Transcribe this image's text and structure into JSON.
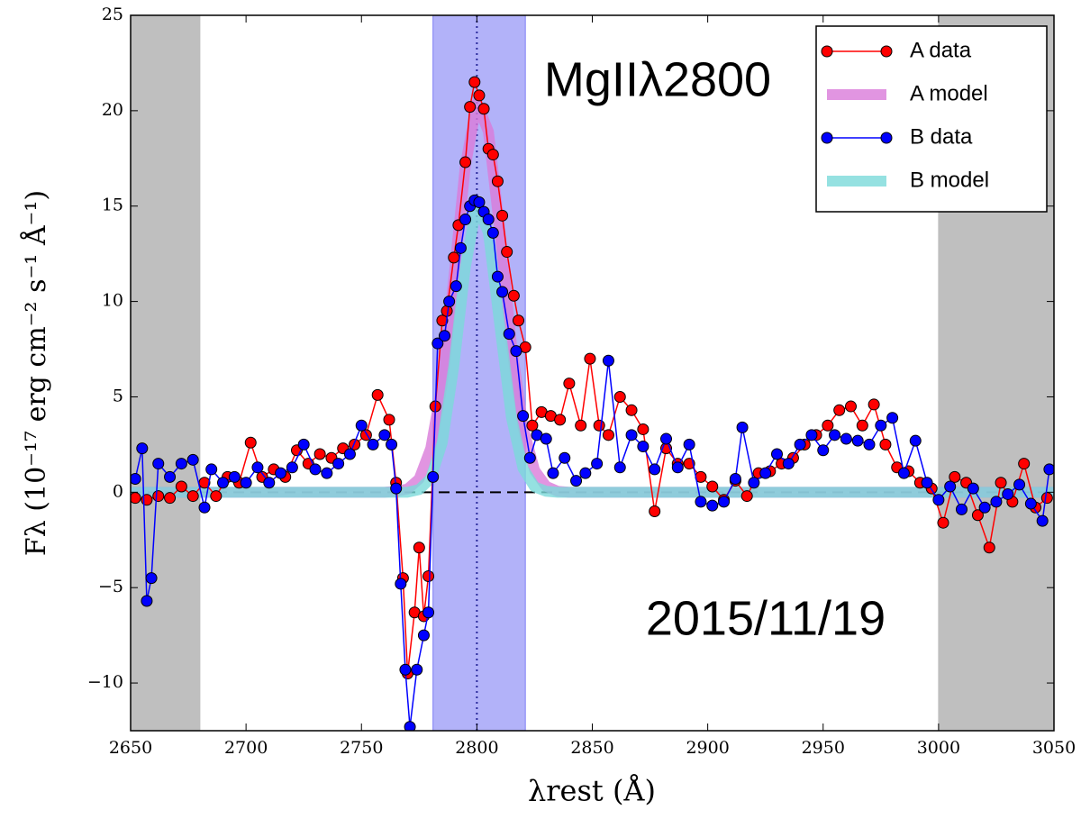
{
  "chart_data": {
    "type": "line",
    "annotations": [
      "MgIIλ2800",
      "2015/11/19"
    ],
    "xlabel": "λrest (Å)",
    "ylabel": "Fλ (10⁻¹⁷ erg cm⁻² s⁻¹ Å⁻¹)",
    "xlim": [
      2650,
      3050
    ],
    "xticks": [
      2650,
      2700,
      2750,
      2800,
      2850,
      2900,
      2950,
      3000,
      3050
    ],
    "ylim": [
      -12.5,
      25
    ],
    "yticks": [
      {
        "value": -10,
        "label": "−10"
      },
      {
        "value": -5,
        "label": "−5"
      },
      0,
      5,
      10,
      15,
      20,
      25
    ],
    "shaded_regions": [
      {
        "xlim": [
          2650,
          2680
        ],
        "color": "#bfbfbf"
      },
      {
        "xlim": [
          2781,
          2821
        ],
        "color": "#7f7ff5"
      },
      {
        "xlim": [
          3000,
          3050
        ],
        "color": "#bfbfbf"
      }
    ],
    "vline": 2800,
    "hline": 0,
    "legend": "upper right",
    "series": [
      {
        "name": "A model",
        "color": "#d97ad9",
        "style": "model",
        "x": [
          2650,
          2760,
          2765,
          2770,
          2775,
          2780,
          2785,
          2790,
          2795,
          2800,
          2805,
          2810,
          2815,
          2820,
          2825,
          2830,
          2835,
          2840,
          3050
        ],
        "values": [
          0,
          0,
          0.05,
          0.17,
          0.7,
          2.3,
          5.7,
          11.2,
          17.1,
          20.4,
          18.9,
          13.7,
          7.7,
          3.4,
          1.15,
          0.31,
          0.05,
          0,
          0
        ]
      },
      {
        "name": "B model",
        "color": "#7ad9d9",
        "style": "model",
        "x": [
          2650,
          2770,
          2775,
          2780,
          2785,
          2790,
          2795,
          2800,
          2805,
          2810,
          2815,
          2820,
          2825,
          2830,
          2835,
          3050
        ],
        "values": [
          0,
          0,
          0.14,
          0.72,
          2.6,
          6.6,
          11.8,
          15.1,
          13.6,
          8.7,
          3.9,
          1.25,
          0.28,
          0.05,
          0,
          0
        ]
      },
      {
        "name": "A data",
        "color": "#ff0000",
        "style": "data",
        "x": [
          2652,
          2657,
          2662,
          2667,
          2672,
          2677,
          2682,
          2687,
          2692,
          2697,
          2702,
          2707,
          2712,
          2717,
          2722,
          2727,
          2732,
          2737,
          2742,
          2747,
          2752,
          2757,
          2762,
          2765,
          2768,
          2770,
          2773,
          2775,
          2777,
          2779,
          2782,
          2785,
          2787,
          2790,
          2792,
          2795,
          2797,
          2799,
          2801,
          2803,
          2805,
          2807,
          2809,
          2811,
          2813,
          2816,
          2818,
          2821,
          2824,
          2828,
          2832,
          2836,
          2840,
          2845,
          2849,
          2853,
          2857,
          2862,
          2867,
          2872,
          2877,
          2882,
          2887,
          2892,
          2897,
          2902,
          2907,
          2912,
          2917,
          2922,
          2927,
          2932,
          2937,
          2942,
          2947,
          2952,
          2957,
          2962,
          2967,
          2972,
          2977,
          2982,
          2987,
          2992,
          2997,
          3002,
          3007,
          3012,
          3017,
          3022,
          3027,
          3032,
          3037,
          3042,
          3047
        ],
        "values": [
          -0.3,
          -0.4,
          -0.2,
          -0.3,
          0.3,
          -0.2,
          0.5,
          -0.2,
          0.8,
          0.5,
          2.6,
          0.8,
          1.2,
          0.8,
          2.2,
          1.5,
          2.0,
          1.8,
          2.3,
          2.5,
          3.0,
          5.1,
          3.8,
          0.5,
          -4.5,
          -9.5,
          -6.3,
          -2.9,
          -6.5,
          -4.4,
          4.5,
          9.0,
          9.5,
          12.3,
          14.0,
          17.3,
          20.2,
          21.5,
          20.8,
          20.1,
          18.0,
          17.7,
          16.3,
          14.5,
          12.6,
          10.3,
          9.0,
          7.6,
          3.5,
          4.2,
          4.0,
          3.8,
          5.7,
          3.5,
          7.0,
          3.5,
          3.0,
          5.0,
          4.3,
          3.3,
          -1.0,
          2.3,
          1.5,
          1.5,
          0.8,
          0.3,
          -0.4,
          0.6,
          -0.2,
          1.0,
          1.1,
          1.5,
          1.8,
          2.5,
          3.0,
          3.5,
          4.3,
          4.5,
          3.5,
          4.6,
          2.5,
          1.3,
          1.1,
          0.5,
          0.2,
          -1.6,
          0.8,
          0.5,
          -1.2,
          -2.9,
          0.5,
          -0.5,
          1.5,
          -0.8,
          -0.3
        ]
      },
      {
        "name": "B data",
        "color": "#0000ff",
        "style": "data",
        "x": [
          2652,
          2655,
          2657,
          2659,
          2662,
          2667,
          2672,
          2677,
          2682,
          2685,
          2690,
          2695,
          2700,
          2705,
          2710,
          2715,
          2720,
          2725,
          2730,
          2735,
          2740,
          2745,
          2750,
          2755,
          2760,
          2763,
          2765,
          2767,
          2769,
          2771,
          2774,
          2777,
          2779,
          2781,
          2783,
          2786,
          2788,
          2791,
          2793,
          2795,
          2797,
          2799,
          2801,
          2803,
          2805,
          2807,
          2809,
          2811,
          2814,
          2817,
          2820,
          2823,
          2826,
          2830,
          2833,
          2838,
          2843,
          2847,
          2852,
          2857,
          2862,
          2867,
          2872,
          2877,
          2882,
          2887,
          2892,
          2897,
          2902,
          2907,
          2912,
          2915,
          2920,
          2925,
          2930,
          2935,
          2940,
          2945,
          2950,
          2955,
          2960,
          2965,
          2970,
          2975,
          2980,
          2985,
          2990,
          2995,
          3000,
          3005,
          3010,
          3015,
          3020,
          3025,
          3030,
          3035,
          3040,
          3045,
          3048
        ],
        "values": [
          0.7,
          2.3,
          -5.7,
          -4.5,
          1.5,
          0.8,
          1.5,
          1.7,
          -0.8,
          1.2,
          0.5,
          0.8,
          0.5,
          1.3,
          0.5,
          1.0,
          1.3,
          2.5,
          1.2,
          1.0,
          1.5,
          2.0,
          3.5,
          2.5,
          3.0,
          2.5,
          0.2,
          -4.8,
          -9.3,
          -12.3,
          -9.3,
          -7.5,
          -6.3,
          0.8,
          7.8,
          8.2,
          10.0,
          10.8,
          12.8,
          14.3,
          15.0,
          15.3,
          15.2,
          14.7,
          14.3,
          13.6,
          11.3,
          10.5,
          8.3,
          7.4,
          4.0,
          1.8,
          3.0,
          2.8,
          1.0,
          1.8,
          0.6,
          1.0,
          1.5,
          6.9,
          1.3,
          3.0,
          2.4,
          1.2,
          2.8,
          1.3,
          2.5,
          -0.5,
          -0.7,
          -0.5,
          0.7,
          3.4,
          0.5,
          1.0,
          2.0,
          1.5,
          2.5,
          3.0,
          2.2,
          3.0,
          2.8,
          2.7,
          2.5,
          3.5,
          3.9,
          1.0,
          2.7,
          0.5,
          -0.4,
          0.3,
          -0.9,
          0.2,
          -0.8,
          -0.5,
          -0.1,
          0.4,
          -0.6,
          -1.5,
          1.2
        ]
      }
    ],
    "legend_order": [
      2,
      0,
      3,
      1
    ]
  }
}
